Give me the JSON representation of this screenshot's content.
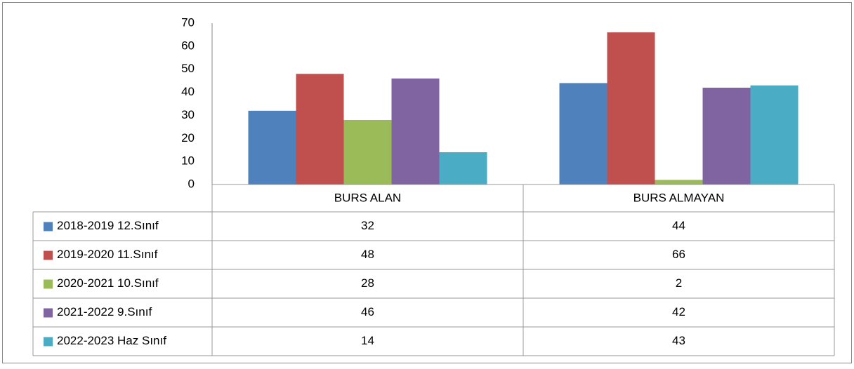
{
  "chart_data": {
    "type": "bar",
    "categories": [
      "BURS ALAN",
      "BURS ALMAYAN"
    ],
    "series": [
      {
        "name": "2018-2019 12.Sınıf",
        "color": "#4f81bd",
        "values": [
          32,
          44
        ]
      },
      {
        "name": "2019-2020 11.Sınıf",
        "color": "#c0504d",
        "values": [
          48,
          66
        ]
      },
      {
        "name": "2020-2021 10.Sınıf",
        "color": "#9bbb59",
        "values": [
          28,
          2
        ]
      },
      {
        "name": "2021-2022 9.Sınıf",
        "color": "#8064a2",
        "values": [
          46,
          42
        ]
      },
      {
        "name": "2022-2023 Haz Sınıf",
        "color": "#4bacc6",
        "values": [
          14,
          43
        ]
      }
    ],
    "ylim": [
      0,
      70
    ],
    "yticks": [
      0,
      10,
      20,
      30,
      40,
      50,
      60,
      70
    ],
    "grid": false
  }
}
